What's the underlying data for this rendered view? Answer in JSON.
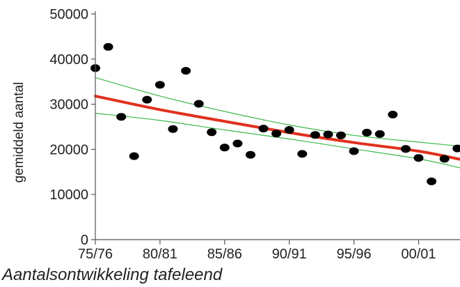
{
  "caption": "Aantalsontwikkeling tafeleend",
  "chart_data": {
    "type": "scatter",
    "title": "",
    "xlabel": "",
    "ylabel": "gemiddeld aantal",
    "ylim": [
      0,
      50000
    ],
    "yticks": [
      0,
      10000,
      20000,
      30000,
      40000,
      50000
    ],
    "xlim": [
      1975,
      2003.2
    ],
    "xticks": [
      {
        "x": 1975,
        "label": "75/76"
      },
      {
        "x": 1980,
        "label": "80/81"
      },
      {
        "x": 1985,
        "label": "85/86"
      },
      {
        "x": 1990,
        "label": "90/91"
      },
      {
        "x": 1995,
        "label": "95/96"
      },
      {
        "x": 2000,
        "label": "00/01"
      }
    ],
    "grid": false,
    "legend": "none",
    "colors": {
      "points": "#000000",
      "trend": "#e0301e",
      "band": "#3cb84a",
      "axis": "#555555"
    },
    "points": [
      {
        "x": 1975,
        "y": 38000
      },
      {
        "x": 1976,
        "y": 42700
      },
      {
        "x": 1977,
        "y": 27200
      },
      {
        "x": 1978,
        "y": 18500
      },
      {
        "x": 1979,
        "y": 31000
      },
      {
        "x": 1980,
        "y": 34300
      },
      {
        "x": 1981,
        "y": 24500
      },
      {
        "x": 1982,
        "y": 37400
      },
      {
        "x": 1983,
        "y": 30100
      },
      {
        "x": 1984,
        "y": 23800
      },
      {
        "x": 1985,
        "y": 20400
      },
      {
        "x": 1986,
        "y": 21300
      },
      {
        "x": 1987,
        "y": 18800
      },
      {
        "x": 1988,
        "y": 24600
      },
      {
        "x": 1989,
        "y": 23500
      },
      {
        "x": 1990,
        "y": 24300
      },
      {
        "x": 1991,
        "y": 19000
      },
      {
        "x": 1992,
        "y": 23200
      },
      {
        "x": 1993,
        "y": 23300
      },
      {
        "x": 1994,
        "y": 23100
      },
      {
        "x": 1995,
        "y": 19600
      },
      {
        "x": 1996,
        "y": 23700
      },
      {
        "x": 1997,
        "y": 23400
      },
      {
        "x": 1998,
        "y": 27700
      },
      {
        "x": 1999,
        "y": 20100
      },
      {
        "x": 2000,
        "y": 18100
      },
      {
        "x": 2001,
        "y": 12900
      },
      {
        "x": 2002,
        "y": 17900
      },
      {
        "x": 2003,
        "y": 20200
      }
    ],
    "trend": {
      "x": [
        1975,
        1980,
        1985,
        1990,
        1995,
        2000,
        2003.2
      ],
      "y": [
        31800,
        28800,
        26200,
        23700,
        21500,
        19600,
        17800
      ]
    },
    "band_upper": {
      "x": [
        1975,
        1980,
        1985,
        1990,
        1995,
        2000,
        2003.2
      ],
      "y": [
        35900,
        31800,
        28400,
        25400,
        23100,
        21600,
        20700
      ]
    },
    "band_lower": {
      "x": [
        1975,
        1980,
        1985,
        1990,
        1995,
        2000,
        2003.2
      ],
      "y": [
        28000,
        26400,
        24300,
        22300,
        20100,
        17900,
        15900
      ]
    }
  }
}
